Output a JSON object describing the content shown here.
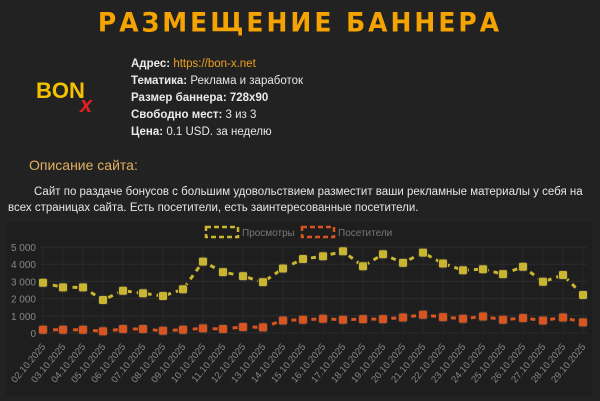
{
  "header": {
    "title": "РАЗМЕЩЕНИЕ БАННЕРА"
  },
  "logo": {
    "text": "BON",
    "mark": "x"
  },
  "info": {
    "address_label": "Адрес:",
    "address_value": "https://bon-x.net",
    "topic_label": "Тематика:",
    "topic_value": "Реклама и заработок",
    "size_label": "Размер баннера:",
    "size_value": "728x90",
    "free_label": "Свободно мест:",
    "free_value": "3 из 3",
    "price_label": "Цена:",
    "price_value": "0.1 USD. за неделю"
  },
  "description": {
    "heading": "Описание сайта:",
    "text": "Сайт по раздаче бонусов с большим удовольствием разместит ваши рекламные материалы у себя на всех страницах сайта. Есть посетители, есть заинтересованные посетители."
  },
  "chart_data": {
    "type": "line",
    "x": [
      "02.10.2025",
      "03.10.2025",
      "04.10.2025",
      "05.10.2025",
      "06.10.2025",
      "07.10.2025",
      "08.10.2025",
      "09.10.2025",
      "10.10.2025",
      "11.10.2025",
      "12.10.2025",
      "13.10.2025",
      "14.10.2025",
      "15.10.2025",
      "16.10.2025",
      "17.10.2025",
      "18.10.2025",
      "19.10.2025",
      "20.10.2025",
      "21.10.2025",
      "22.10.2025",
      "23.10.2025",
      "24.10.2025",
      "25.10.2025",
      "26.10.2025",
      "27.10.2025",
      "28.10.2025",
      "29.10.2025"
    ],
    "series": [
      {
        "name": "Просмотры",
        "color": "#c9b52e",
        "values": [
          2920,
          2650,
          2650,
          1920,
          2460,
          2310,
          2150,
          2540,
          4150,
          3540,
          3310,
          2960,
          3750,
          4300,
          4460,
          4750,
          3880,
          4580,
          4080,
          4670,
          4040,
          3650,
          3710,
          3420,
          3850,
          2980,
          3370,
          2210
        ]
      },
      {
        "name": "Посетители",
        "color": "#d9541e",
        "values": [
          190,
          190,
          190,
          100,
          230,
          230,
          130,
          190,
          270,
          230,
          350,
          330,
          730,
          770,
          830,
          770,
          810,
          810,
          900,
          1060,
          920,
          830,
          960,
          770,
          870,
          730,
          900,
          620
        ]
      }
    ],
    "yticks": [
      "0",
      "1 000",
      "2 000",
      "3 000",
      "4 000",
      "5 000"
    ],
    "ylim": [
      0,
      5000
    ],
    "grid": true,
    "legend": "top-center"
  }
}
